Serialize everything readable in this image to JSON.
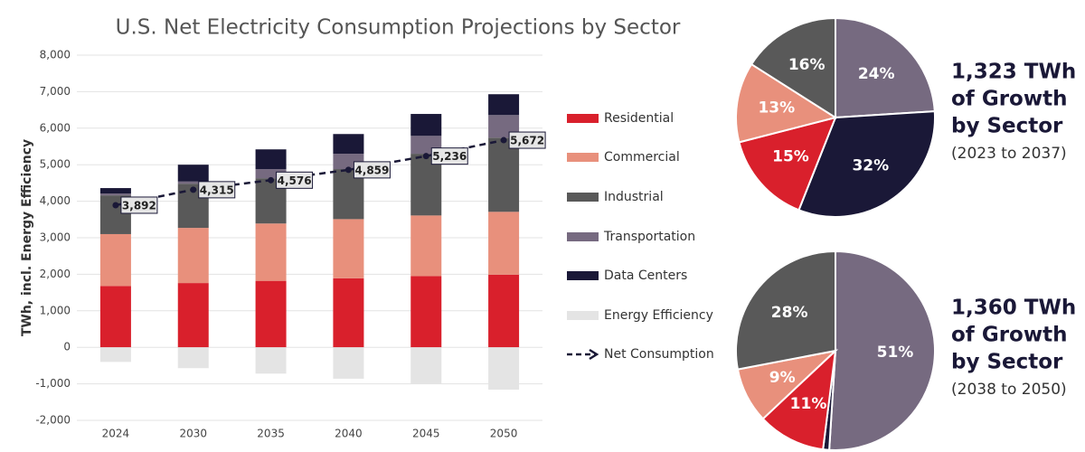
{
  "chart_data": [
    {
      "type": "bar",
      "stacked": true,
      "title": "U.S. Net Electricity Consumption Projections by Sector",
      "y_label": "TWh, incl. Energy Efficiency",
      "categories": [
        "2024",
        "2030",
        "2035",
        "2040",
        "2045",
        "2050"
      ],
      "series": [
        {
          "name": "Residential",
          "color": "#d9202c",
          "values": [
            1680,
            1760,
            1820,
            1890,
            1950,
            1990
          ]
        },
        {
          "name": "Commercial",
          "color": "#e8907c",
          "values": [
            1420,
            1510,
            1570,
            1620,
            1660,
            1720
          ]
        },
        {
          "name": "Industrial",
          "color": "#595959",
          "values": [
            1060,
            1210,
            1240,
            1370,
            1690,
            2030
          ]
        },
        {
          "name": "Transportation",
          "color": "#766a80",
          "values": [
            50,
            60,
            250,
            420,
            490,
            620
          ]
        },
        {
          "name": "Data Centers",
          "color": "#1a1837",
          "values": [
            150,
            460,
            540,
            540,
            600,
            570
          ]
        },
        {
          "name": "Energy Efficiency",
          "color": "#e4e4e4",
          "values": [
            -400,
            -570,
            -720,
            -860,
            -1010,
            -1160
          ]
        },
        {
          "name": "Net Consumption",
          "color": "#1a1837",
          "type": "line",
          "dashed": true,
          "values": [
            3892,
            4315,
            4576,
            4859,
            5236,
            5672
          ],
          "value_labels": [
            "3,892",
            "4,315",
            "4,576",
            "4,859",
            "5,236",
            "5,672"
          ]
        }
      ],
      "ylim": [
        -2000,
        8000
      ],
      "yticks": [
        {
          "value": -2000,
          "label": "-2,000"
        },
        {
          "value": -1000,
          "label": "-1,000"
        },
        0,
        {
          "value": 1000,
          "label": "1,000"
        },
        {
          "value": 2000,
          "label": "2,000"
        },
        {
          "value": 3000,
          "label": "3,000"
        },
        {
          "value": 4000,
          "label": "4,000"
        },
        {
          "value": 5000,
          "label": "5,000"
        },
        {
          "value": 6000,
          "label": "6,000"
        },
        {
          "value": 7000,
          "label": "7,000"
        },
        {
          "value": 8000,
          "label": "8,000"
        }
      ],
      "grid": true
    },
    {
      "type": "pie",
      "headline": [
        "1,323 TWh",
        "of Growth",
        "by Sector"
      ],
      "subtitle": "(2023 to 2037)",
      "values": [
        24,
        32,
        15,
        13,
        16
      ],
      "value_labels": [
        "24%",
        "32%",
        "15%",
        "13%",
        "16%"
      ],
      "colors": [
        "#766a80",
        "#1a1837",
        "#d9202c",
        "#e8907c",
        "#595959"
      ]
    },
    {
      "type": "pie",
      "headline": [
        "1,360 TWh",
        "of Growth",
        "by Sector"
      ],
      "subtitle": "(2038 to 2050)",
      "values": [
        51,
        1,
        11,
        9,
        28
      ],
      "value_labels": [
        "51%",
        null,
        "11%",
        "9%",
        "28%"
      ],
      "colors": [
        "#766a80",
        "#1a1837",
        "#d9202c",
        "#e8907c",
        "#595959"
      ]
    }
  ]
}
